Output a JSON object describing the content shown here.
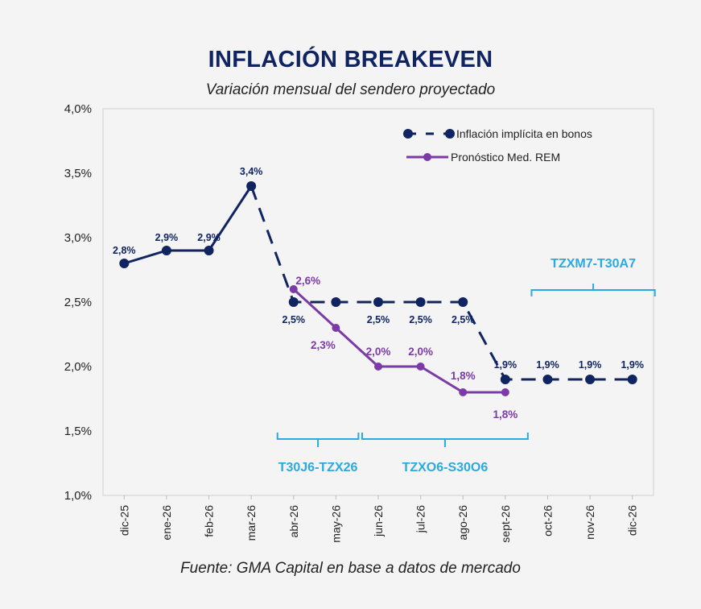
{
  "chart_data": {
    "type": "line",
    "title": "INFLACIÓN BREAKEVEN",
    "subtitle": "Variación mensual del sendero proyectado",
    "source": "Fuente: GMA Capital en base a datos de mercado",
    "categories": [
      "dic-25",
      "ene-26",
      "feb-26",
      "mar-26",
      "abr-26",
      "may-26",
      "jun-26",
      "jul-26",
      "ago-26",
      "sept-26",
      "oct-26",
      "nov-26",
      "dic-26"
    ],
    "ylim": [
      1.0,
      4.0
    ],
    "yticks": [
      "1,0%",
      "1,5%",
      "2,0%",
      "2,5%",
      "3,0%",
      "3,5%",
      "4,0%"
    ],
    "ytick_values": [
      1.0,
      1.5,
      2.0,
      2.5,
      3.0,
      3.5,
      4.0
    ],
    "grid": false,
    "legend_position": "top-right",
    "series": [
      {
        "name": "Inflación implícita en bonos",
        "color": "#0f2461",
        "style": "solid-then-dashed",
        "dashed_from": "mar-26",
        "values": [
          2.8,
          2.9,
          2.9,
          3.4,
          2.5,
          2.5,
          2.5,
          2.5,
          2.5,
          1.9,
          1.9,
          1.9,
          1.9
        ],
        "labels": [
          "2,8%",
          "2,9%",
          "2,9%",
          "3,4%",
          "2,5%",
          "",
          "2,5%",
          "2,5%",
          "2,5%",
          "1,9%",
          "1,9%",
          "1,9%",
          "1,9%"
        ]
      },
      {
        "name": "Pronóstico Med. REM",
        "color": "#7b3aa6",
        "style": "solid",
        "values": [
          null,
          null,
          null,
          null,
          2.6,
          2.3,
          2.0,
          2.0,
          1.8,
          1.8,
          null,
          null,
          null
        ],
        "labels": [
          "",
          "",
          "",
          "",
          "2,6%",
          "2,3%",
          "2,0%",
          "2,0%",
          "1,8%",
          "1,8%",
          "",
          "",
          ""
        ]
      }
    ],
    "annotations": [
      {
        "text": "T30J6-TZX26",
        "from": "abr-26",
        "to": "may-26",
        "color": "#29aae1"
      },
      {
        "text": "TZXO6-S30O6",
        "from": "jun-26",
        "to": "sept-26",
        "color": "#29aae1"
      },
      {
        "text": "TZXM7-T30A7",
        "from": "oct-26",
        "to": "dic-26",
        "color": "#29aae1"
      }
    ]
  }
}
